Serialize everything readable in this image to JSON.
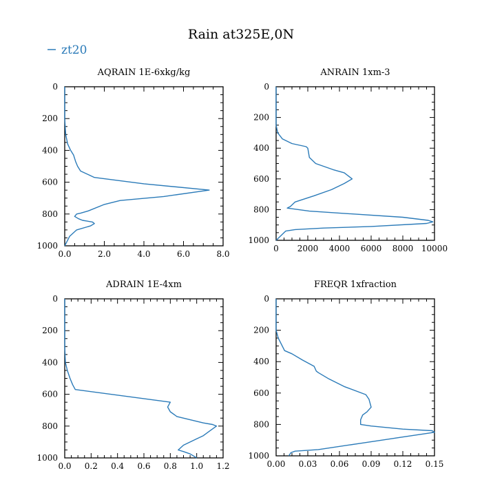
{
  "figure": {
    "title": "Rain at325E,0N",
    "legend": {
      "label": "zt20",
      "color": "#2a7ab8",
      "placement": "top-left"
    }
  },
  "chart_data": [
    {
      "type": "line",
      "title": "AQRAIN  1E-6xkg/kg",
      "xlim": [
        0,
        8
      ],
      "xticks": [
        "0.0",
        "2.0",
        "4.0",
        "6.0",
        "8.0"
      ],
      "xtick_values": [
        0,
        2,
        4,
        6,
        8
      ],
      "ylim": [
        0,
        1000
      ],
      "yticks": [
        "0",
        "200",
        "400",
        "600",
        "800",
        "1000"
      ],
      "ytick_values": [
        0,
        200,
        400,
        600,
        800,
        1000
      ],
      "y_inverted": true,
      "series": [
        {
          "name": "zt20",
          "x": [
            0,
            0,
            0,
            0.05,
            0.15,
            0.3,
            0.45,
            0.55,
            0.65,
            0.8,
            1.5,
            4,
            7.3,
            5,
            2.8,
            2,
            1.2,
            0.8,
            0.6,
            0.5,
            0.7,
            0.9,
            1.4,
            1.5,
            1.3,
            0.6,
            0.25,
            0
          ],
          "y": [
            0,
            100,
            200,
            300,
            360,
            400,
            430,
            470,
            500,
            530,
            570,
            610,
            650,
            690,
            715,
            740,
            780,
            795,
            800,
            815,
            830,
            840,
            850,
            860,
            875,
            900,
            940,
            1000
          ]
        }
      ]
    },
    {
      "type": "line",
      "title": "ANRAIN  1xm-3",
      "xlim": [
        0,
        10000
      ],
      "xticks": [
        "0",
        "2000",
        "4000",
        "6000",
        "8000",
        "10000"
      ],
      "xtick_values": [
        0,
        2000,
        4000,
        6000,
        8000,
        10000
      ],
      "ylim": [
        0,
        1000
      ],
      "yticks": [
        "0",
        "200",
        "400",
        "600",
        "800",
        "1000"
      ],
      "ytick_values": [
        0,
        200,
        400,
        600,
        800,
        1000
      ],
      "y_inverted": true,
      "series": [
        {
          "name": "zt20",
          "x": [
            0,
            0,
            0,
            100,
            400,
            1000,
            1900,
            2000,
            2100,
            2500,
            3600,
            4300,
            4800,
            4300,
            3500,
            2400,
            1200,
            900,
            700,
            2100,
            8000,
            9600,
            9900,
            9500,
            6000,
            3000,
            1200,
            600,
            0
          ],
          "y": [
            0,
            100,
            250,
            300,
            340,
            370,
            390,
            400,
            460,
            500,
            540,
            560,
            600,
            630,
            670,
            710,
            750,
            780,
            790,
            810,
            850,
            870,
            880,
            890,
            910,
            920,
            930,
            940,
            1000
          ]
        }
      ]
    },
    {
      "type": "line",
      "title": "ADRAIN  1E-4xm",
      "xlim": [
        0,
        1.2
      ],
      "xticks": [
        "0.0",
        "0.2",
        "0.4",
        "0.6",
        "0.8",
        "1.0",
        "1.2"
      ],
      "xtick_values": [
        0,
        0.2,
        0.4,
        0.6,
        0.8,
        1.0,
        1.2
      ],
      "ylim": [
        0,
        1000
      ],
      "yticks": [
        "0",
        "200",
        "400",
        "600",
        "800",
        "1000"
      ],
      "ytick_values": [
        0,
        200,
        400,
        600,
        800,
        1000
      ],
      "y_inverted": true,
      "series": [
        {
          "name": "zt20",
          "x": [
            0,
            0,
            0.005,
            0.02,
            0.04,
            0.06,
            0.08,
            0.8,
            0.78,
            0.8,
            0.85,
            0.95,
            1.05,
            1.12,
            1.15,
            1.1,
            1.05,
            1.0,
            0.95,
            0.9,
            0.86,
            0.9,
            0.95,
            1.0
          ],
          "y": [
            0,
            300,
            400,
            450,
            500,
            540,
            570,
            650,
            680,
            710,
            740,
            760,
            780,
            790,
            800,
            830,
            860,
            880,
            900,
            920,
            950,
            960,
            975,
            1000
          ]
        }
      ]
    },
    {
      "type": "line",
      "title": "FREQR  1xfraction",
      "xlim": [
        0,
        0.15
      ],
      "xticks": [
        "0.00",
        "0.03",
        "0.06",
        "0.09",
        "0.12",
        "0.15"
      ],
      "xtick_values": [
        0,
        0.03,
        0.06,
        0.09,
        0.12,
        0.15
      ],
      "ylim": [
        0,
        1000
      ],
      "yticks": [
        "0",
        "200",
        "400",
        "600",
        "800",
        "1000"
      ],
      "ytick_values": [
        0,
        200,
        400,
        600,
        800,
        1000
      ],
      "y_inverted": true,
      "series": [
        {
          "name": "zt20",
          "x": [
            0,
            0,
            0.002,
            0.005,
            0.008,
            0.015,
            0.025,
            0.036,
            0.038,
            0.04,
            0.05,
            0.065,
            0.085,
            0.088,
            0.09,
            0.086,
            0.082,
            0.08,
            0.08,
            0.09,
            0.12,
            0.148,
            0.15,
            0.11,
            0.08,
            0.04,
            0.018,
            0.014,
            0.012
          ],
          "y": [
            0,
            200,
            250,
            290,
            330,
            350,
            390,
            430,
            460,
            470,
            510,
            560,
            610,
            640,
            690,
            720,
            740,
            770,
            800,
            810,
            830,
            840,
            850,
            890,
            920,
            960,
            970,
            980,
            1000
          ]
        }
      ]
    }
  ]
}
